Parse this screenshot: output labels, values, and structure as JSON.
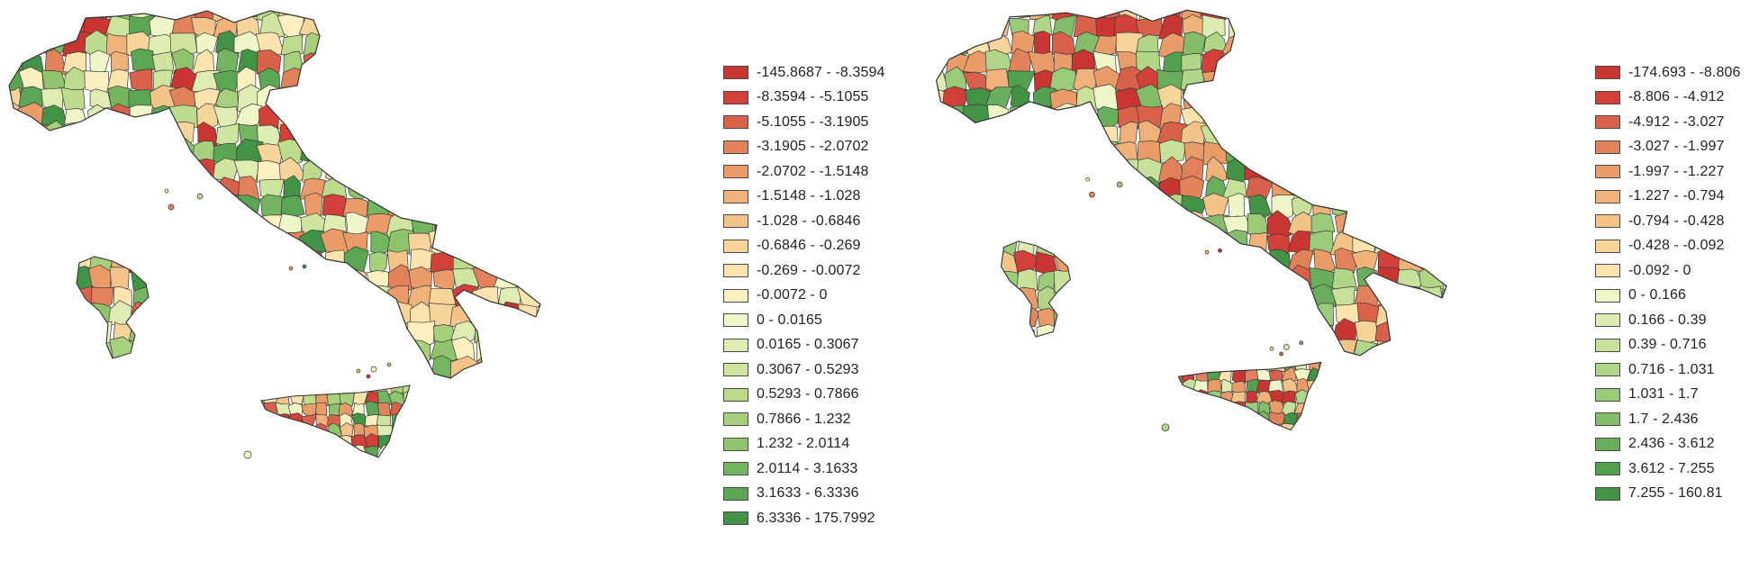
{
  "maps": [
    {
      "id": "left",
      "legend": [
        {
          "label": "-145.8687 - -8.3594",
          "color": "#c93530"
        },
        {
          "label": "-8.3594 - -5.1055",
          "color": "#d2403a"
        },
        {
          "label": "-5.1055 - -3.1905",
          "color": "#d9614a"
        },
        {
          "label": "-3.1905 - -2.0702",
          "color": "#e2825a"
        },
        {
          "label": "-2.0702 - -1.5148",
          "color": "#e99b68"
        },
        {
          "label": "-1.5148 - -1.028",
          "color": "#efb278"
        },
        {
          "label": "-1.028 - -0.6846",
          "color": "#f3c388"
        },
        {
          "label": "-0.6846 - -0.269",
          "color": "#f7d49a"
        },
        {
          "label": "-0.269 - -0.0072",
          "color": "#fae3ad"
        },
        {
          "label": "-0.0072 - 0",
          "color": "#fcf0c0"
        },
        {
          "label": "0 - 0.0165",
          "color": "#f1f6c9"
        },
        {
          "label": "0.0165 - 0.3067",
          "color": "#dfedb3"
        },
        {
          "label": "0.3067 - 0.5293",
          "color": "#cfe59f"
        },
        {
          "label": "0.5293 - 0.7866",
          "color": "#bddb8d"
        },
        {
          "label": "0.7866 - 1.232",
          "color": "#a7d07d"
        },
        {
          "label": "1.232 - 2.0114",
          "color": "#8fc46d"
        },
        {
          "label": "2.0114 - 3.1633",
          "color": "#74b560"
        },
        {
          "label": "3.1633 - 6.3336",
          "color": "#5aa653"
        },
        {
          "label": "6.3336 - 175.7992",
          "color": "#439347"
        }
      ]
    },
    {
      "id": "right",
      "legend": [
        {
          "label": "-174.693 - -8.806",
          "color": "#c93530"
        },
        {
          "label": "-8.806 - -4.912",
          "color": "#d2403a"
        },
        {
          "label": "-4.912 - -3.027",
          "color": "#d9614a"
        },
        {
          "label": "-3.027 - -1.997",
          "color": "#e2825a"
        },
        {
          "label": "-1.997 - -1.227",
          "color": "#e99b68"
        },
        {
          "label": "-1.227 - -0.794",
          "color": "#efb278"
        },
        {
          "label": "-0.794 - -0.428",
          "color": "#f3c388"
        },
        {
          "label": "-0.428 - -0.092",
          "color": "#f7d49a"
        },
        {
          "label": "-0.092 - 0",
          "color": "#fae3ad"
        },
        {
          "label": "0 - 0.166",
          "color": "#eef5c6"
        },
        {
          "label": "0.166 - 0.39",
          "color": "#dcecb1"
        },
        {
          "label": "0.39 - 0.716",
          "color": "#c8e19a"
        },
        {
          "label": "0.716 - 1.031",
          "color": "#b2d688"
        },
        {
          "label": "1.031 - 1.7",
          "color": "#9bca78"
        },
        {
          "label": "1.7 - 2.436",
          "color": "#83bd69"
        },
        {
          "label": "2.436 - 3.612",
          "color": "#69ae5c"
        },
        {
          "label": "3.612 - 7.255",
          "color": "#52a050"
        },
        {
          "label": "7.255 - 160.81",
          "color": "#439347"
        }
      ]
    }
  ]
}
